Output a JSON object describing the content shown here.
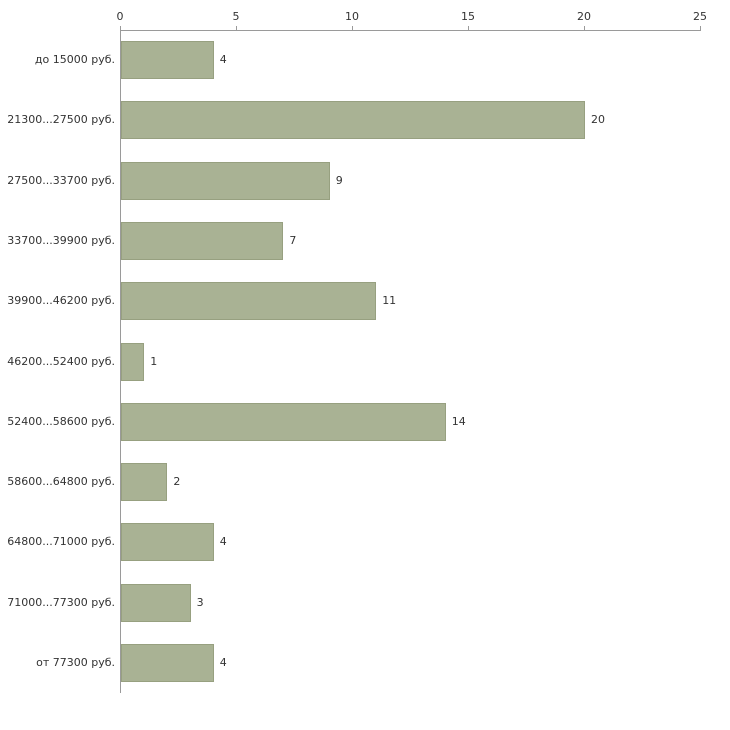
{
  "chart_data": {
    "type": "bar",
    "orientation": "horizontal",
    "title": "",
    "xlabel": "",
    "ylabel": "",
    "categories": [
      "до 15000 руб.",
      "21300...27500 руб.",
      "27500...33700 руб.",
      "33700...39900 руб.",
      "39900...46200 руб.",
      "46200...52400 руб.",
      "52400...58600 руб.",
      "58600...64800 руб.",
      "64800...71000 руб.",
      "71000...77300 руб.",
      "от 77300 руб."
    ],
    "values": [
      4,
      20,
      9,
      7,
      11,
      1,
      14,
      2,
      4,
      3,
      4
    ],
    "xlim": [
      0,
      25
    ],
    "x_ticks": [
      0,
      5,
      10,
      15,
      20,
      25
    ],
    "legend": null,
    "grid": false,
    "bar_color": "#a9b294",
    "bar_border_color": "#97a080",
    "axis_color": "#9a9a9a",
    "text_color": "#333333",
    "background_color": "#ffffff"
  }
}
